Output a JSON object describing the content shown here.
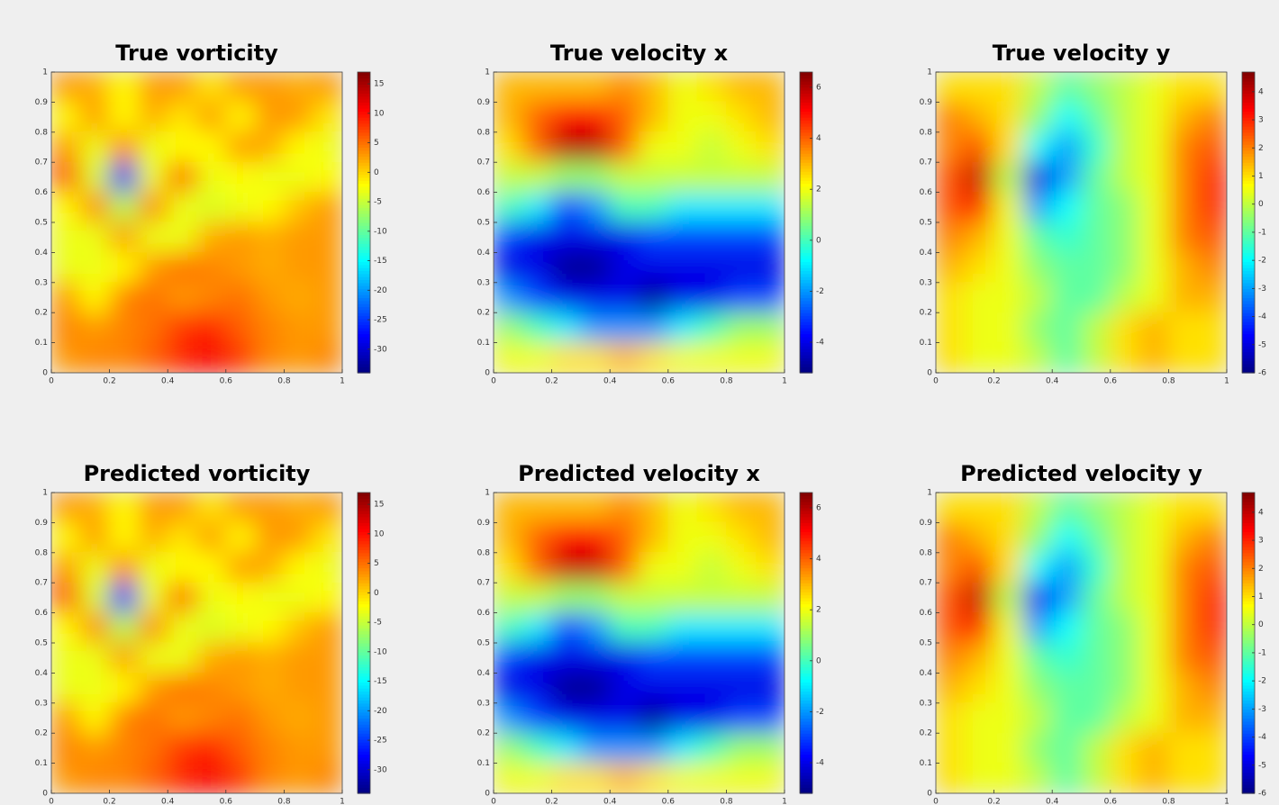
{
  "chart_data": [
    {
      "type": "heatmap",
      "title": "True vorticity",
      "x": [
        0.05,
        0.15,
        0.25,
        0.35,
        0.45,
        0.55,
        0.65,
        0.75,
        0.85,
        0.95
      ],
      "y": [
        0.95,
        0.85,
        0.75,
        0.65,
        0.55,
        0.45,
        0.35,
        0.25,
        0.15,
        0.05
      ],
      "z": [
        [
          3,
          2,
          -2,
          3,
          3,
          -1,
          3,
          3,
          2,
          3
        ],
        [
          -2,
          3,
          -2,
          2,
          -1,
          3,
          -2,
          3,
          3,
          -1
        ],
        [
          3,
          -3,
          4,
          -3,
          -2,
          -2,
          3,
          2,
          -2,
          -3
        ],
        [
          7,
          -4,
          -28,
          -3,
          6,
          -3,
          -2,
          -3,
          -3,
          -2
        ],
        [
          -2,
          4,
          -6,
          4,
          -3,
          -4,
          -3,
          -2,
          1,
          3
        ],
        [
          -3,
          -3,
          3,
          -3,
          -3,
          2,
          3,
          2,
          3,
          3
        ],
        [
          -3,
          -3,
          -2,
          3,
          5,
          4,
          3,
          2,
          3,
          3
        ],
        [
          3,
          -2,
          4,
          5,
          3,
          4,
          5,
          3,
          2,
          3
        ],
        [
          4,
          3,
          4,
          5,
          8,
          9,
          6,
          4,
          3,
          3
        ],
        [
          3,
          4,
          4,
          6,
          9,
          11,
          8,
          4,
          3,
          4
        ]
      ],
      "xlim": [
        0,
        1
      ],
      "ylim": [
        0,
        1
      ],
      "xticks": [
        0,
        0.2,
        0.4,
        0.6,
        0.8,
        1
      ],
      "yticks": [
        0,
        0.1,
        0.2,
        0.3,
        0.4,
        0.5,
        0.6,
        0.7,
        0.8,
        0.9,
        1
      ],
      "clim": [
        -34,
        17
      ],
      "cticks": [
        15,
        10,
        5,
        0,
        -5,
        -10,
        -15,
        -20,
        -25,
        -30
      ]
    },
    {
      "type": "heatmap",
      "title": "True velocity x",
      "x": [
        0.05,
        0.15,
        0.25,
        0.35,
        0.45,
        0.55,
        0.65,
        0.75,
        0.85,
        0.95
      ],
      "y": [
        0.95,
        0.85,
        0.75,
        0.65,
        0.55,
        0.45,
        0.35,
        0.25,
        0.15,
        0.05
      ],
      "z": [
        [
          3,
          3,
          3,
          3,
          3.5,
          3,
          2,
          2.5,
          3,
          3
        ],
        [
          3,
          4,
          5,
          5,
          4,
          3,
          2,
          2,
          2.5,
          3
        ],
        [
          2.5,
          4,
          6,
          6,
          4,
          2,
          2,
          1.5,
          2,
          2.5
        ],
        [
          1.5,
          1.5,
          1,
          1,
          1.5,
          1.5,
          1.5,
          1.5,
          1.5,
          1.5
        ],
        [
          0,
          -1,
          -3,
          -2,
          0,
          0,
          -1,
          -1,
          -1,
          -1
        ],
        [
          -3,
          -4,
          -4,
          -4,
          -4,
          -3,
          -3,
          -3,
          -3,
          -3
        ],
        [
          -4,
          -4,
          -5,
          -5,
          -4,
          -4,
          -4,
          -4,
          -4,
          -4
        ],
        [
          -2,
          -3,
          -4,
          -4,
          -4,
          -5,
          -4,
          -4,
          -3,
          -3
        ],
        [
          1,
          0,
          -1,
          -2,
          -2,
          -2,
          -1,
          0,
          1,
          1
        ],
        [
          2,
          2,
          2.5,
          2.5,
          3,
          2.5,
          2,
          2,
          2,
          2
        ]
      ],
      "xlim": [
        0,
        1
      ],
      "ylim": [
        0,
        1
      ],
      "xticks": [
        0,
        0.2,
        0.4,
        0.6,
        0.8,
        1
      ],
      "yticks": [
        0,
        0.1,
        0.2,
        0.3,
        0.4,
        0.5,
        0.6,
        0.7,
        0.8,
        0.9,
        1
      ],
      "clim": [
        -5.2,
        6.6
      ],
      "cticks": [
        6,
        4,
        2,
        0,
        -2,
        -4
      ]
    },
    {
      "type": "heatmap",
      "title": "True velocity y",
      "x": [
        0.05,
        0.15,
        0.25,
        0.35,
        0.45,
        0.55,
        0.65,
        0.75,
        0.85,
        0.95
      ],
      "y": [
        0.95,
        0.85,
        0.75,
        0.65,
        0.55,
        0.45,
        0.35,
        0.25,
        0.15,
        0.05
      ],
      "z": [
        [
          1,
          1,
          1,
          0,
          -1,
          -0.5,
          0,
          0.5,
          1,
          1
        ],
        [
          2,
          1.5,
          1,
          -0.5,
          -2,
          -1,
          0,
          0.5,
          1.5,
          2
        ],
        [
          2,
          2.5,
          1,
          -2,
          -3,
          -1.5,
          0,
          0.5,
          2,
          2.5
        ],
        [
          2.5,
          4,
          0,
          -5,
          -3,
          -1,
          0,
          0.5,
          2,
          3
        ],
        [
          2.5,
          3,
          0.5,
          -3,
          -2,
          -1,
          -0.5,
          0.5,
          2,
          3
        ],
        [
          2,
          1.5,
          0.5,
          -1,
          -1.5,
          -1,
          -0.5,
          0.5,
          2,
          2.5
        ],
        [
          1.5,
          1,
          0.5,
          -0.5,
          -1,
          -1,
          -0.5,
          0.5,
          1.5,
          2
        ],
        [
          1,
          0.5,
          0.5,
          0,
          -1,
          -1,
          0,
          0.5,
          1.5,
          1.5
        ],
        [
          1,
          0.5,
          0.5,
          -0.5,
          -1,
          0,
          1,
          1.5,
          1,
          1
        ],
        [
          1,
          0.5,
          0.5,
          0,
          -1,
          0,
          1,
          1.5,
          1,
          1
        ]
      ],
      "xlim": [
        0,
        1
      ],
      "ylim": [
        0,
        1
      ],
      "xticks": [
        0,
        0.2,
        0.4,
        0.6,
        0.8,
        1
      ],
      "yticks": [
        0,
        0.1,
        0.2,
        0.3,
        0.4,
        0.5,
        0.6,
        0.7,
        0.8,
        0.9,
        1
      ],
      "clim": [
        -6,
        4.7
      ],
      "cticks": [
        4,
        3,
        2,
        1,
        0,
        -1,
        -2,
        -3,
        -4,
        -5,
        -6
      ]
    },
    {
      "type": "heatmap",
      "title": "Predicted vorticity",
      "x": [
        0.05,
        0.15,
        0.25,
        0.35,
        0.45,
        0.55,
        0.65,
        0.75,
        0.85,
        0.95
      ],
      "y": [
        0.95,
        0.85,
        0.75,
        0.65,
        0.55,
        0.45,
        0.35,
        0.25,
        0.15,
        0.05
      ],
      "z": [
        [
          3,
          2,
          -2,
          3,
          3,
          -1,
          3,
          3,
          2,
          3
        ],
        [
          -2,
          3,
          -2,
          2,
          -1,
          3,
          -2,
          3,
          3,
          -1
        ],
        [
          3,
          -3,
          4,
          -3,
          -2,
          -2,
          3,
          2,
          -2,
          -3
        ],
        [
          7,
          -4,
          -27,
          -3,
          6,
          -3,
          -2,
          -3,
          -3,
          -2
        ],
        [
          -2,
          4,
          -6,
          4,
          -3,
          -4,
          -3,
          -2,
          1,
          3
        ],
        [
          -3,
          -3,
          3,
          -3,
          -3,
          2,
          3,
          2,
          3,
          3
        ],
        [
          -3,
          -3,
          -2,
          3,
          5,
          4,
          3,
          2,
          3,
          3
        ],
        [
          3,
          -2,
          4,
          5,
          3,
          4,
          5,
          3,
          2,
          3
        ],
        [
          4,
          3,
          4,
          5,
          8,
          9,
          6,
          4,
          3,
          3
        ],
        [
          3,
          4,
          4,
          6,
          9,
          11,
          8,
          4,
          3,
          4
        ]
      ],
      "xlim": [
        0,
        1
      ],
      "ylim": [
        0,
        1
      ],
      "xticks": [
        0,
        0.2,
        0.4,
        0.6,
        0.8,
        1
      ],
      "yticks": [
        0,
        0.1,
        0.2,
        0.3,
        0.4,
        0.5,
        0.6,
        0.7,
        0.8,
        0.9,
        1
      ],
      "clim": [
        -34,
        17
      ],
      "cticks": [
        15,
        10,
        5,
        0,
        -5,
        -10,
        -15,
        -20,
        -25,
        -30
      ]
    },
    {
      "type": "heatmap",
      "title": "Predicted velocity x",
      "x": [
        0.05,
        0.15,
        0.25,
        0.35,
        0.45,
        0.55,
        0.65,
        0.75,
        0.85,
        0.95
      ],
      "y": [
        0.95,
        0.85,
        0.75,
        0.65,
        0.55,
        0.45,
        0.35,
        0.25,
        0.15,
        0.05
      ],
      "z": [
        [
          3,
          3,
          3,
          3,
          3.5,
          3,
          2,
          2.5,
          3,
          3
        ],
        [
          3,
          4,
          5,
          5,
          4,
          3,
          2,
          2,
          2.5,
          3
        ],
        [
          2.5,
          4,
          5.8,
          5.8,
          4,
          2,
          2,
          1.5,
          2,
          2.5
        ],
        [
          1.5,
          1.5,
          1,
          1,
          1.5,
          1.5,
          1.5,
          1.5,
          1.5,
          1.5
        ],
        [
          0,
          -1,
          -3,
          -2,
          0,
          0,
          -1,
          -1,
          -1,
          -1
        ],
        [
          -3,
          -4,
          -4,
          -4,
          -4,
          -3,
          -3,
          -3,
          -3,
          -3
        ],
        [
          -4,
          -4,
          -5,
          -5,
          -4,
          -4,
          -4,
          -4,
          -4,
          -4
        ],
        [
          -2,
          -3,
          -4,
          -4,
          -4,
          -5,
          -4,
          -4,
          -3,
          -3
        ],
        [
          1,
          0,
          -1,
          -2,
          -2,
          -2,
          -1,
          0,
          1,
          1
        ],
        [
          2,
          2,
          2.5,
          2.5,
          3,
          2.5,
          2,
          2,
          2,
          2
        ]
      ],
      "xlim": [
        0,
        1
      ],
      "ylim": [
        0,
        1
      ],
      "xticks": [
        0,
        0.2,
        0.4,
        0.6,
        0.8,
        1
      ],
      "yticks": [
        0,
        0.1,
        0.2,
        0.3,
        0.4,
        0.5,
        0.6,
        0.7,
        0.8,
        0.9,
        1
      ],
      "clim": [
        -5.2,
        6.6
      ],
      "cticks": [
        6,
        4,
        2,
        0,
        -2,
        -4
      ]
    },
    {
      "type": "heatmap",
      "title": "Predicted velocity y",
      "x": [
        0.05,
        0.15,
        0.25,
        0.35,
        0.45,
        0.55,
        0.65,
        0.75,
        0.85,
        0.95
      ],
      "y": [
        0.95,
        0.85,
        0.75,
        0.65,
        0.55,
        0.45,
        0.35,
        0.25,
        0.15,
        0.05
      ],
      "z": [
        [
          1,
          1,
          1,
          0,
          -1,
          -0.5,
          0,
          0.5,
          1,
          1
        ],
        [
          2,
          1.5,
          1,
          -0.5,
          -2,
          -1,
          0,
          0.5,
          1.5,
          2
        ],
        [
          2,
          2.5,
          1,
          -2,
          -3,
          -1.5,
          0,
          0.5,
          2,
          2.5
        ],
        [
          2.5,
          4,
          0,
          -4.8,
          -3,
          -1,
          0,
          0.5,
          2,
          3
        ],
        [
          2.5,
          3,
          0.5,
          -3,
          -2,
          -1,
          -0.5,
          0.5,
          2,
          3
        ],
        [
          2,
          1.5,
          0.5,
          -1,
          -1.5,
          -1,
          -0.5,
          0.5,
          2,
          2.5
        ],
        [
          1.5,
          1,
          0.5,
          -0.5,
          -1,
          -1,
          -0.5,
          0.5,
          1.5,
          2
        ],
        [
          1,
          0.5,
          0.5,
          0,
          -1,
          -1,
          0,
          0.5,
          1.5,
          1.5
        ],
        [
          1,
          0.5,
          0.5,
          -0.5,
          -1,
          0,
          1,
          1.5,
          1,
          1
        ],
        [
          1,
          0.5,
          0.5,
          0,
          -1,
          0,
          1,
          1.5,
          1,
          1
        ]
      ],
      "xlim": [
        0,
        1
      ],
      "ylim": [
        0,
        1
      ],
      "xticks": [
        0,
        0.2,
        0.4,
        0.6,
        0.8,
        1
      ],
      "yticks": [
        0,
        0.1,
        0.2,
        0.3,
        0.4,
        0.5,
        0.6,
        0.7,
        0.8,
        0.9,
        1
      ],
      "clim": [
        -6,
        4.7
      ],
      "cticks": [
        4,
        3,
        2,
        1,
        0,
        -1,
        -2,
        -3,
        -4,
        -5,
        -6
      ]
    }
  ]
}
